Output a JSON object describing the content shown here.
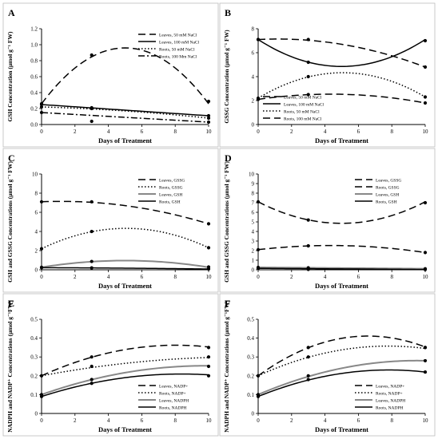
{
  "chart_data": [
    {
      "panel": "A",
      "type": "line",
      "ylabel": "GSH Concentration (µmol g⁻¹ FW)",
      "xlabel": "Days of Treatment",
      "xlim": [
        0,
        10
      ],
      "ylim": [
        0,
        1.2
      ],
      "xticks": [
        0,
        2,
        4,
        6,
        8,
        10
      ],
      "yticks": [
        "0.0",
        "0.2",
        "0.4",
        "0.6",
        "0.8",
        "1.0",
        "1.2"
      ],
      "legend_position": "top-right",
      "series": [
        {
          "name": "Leaves, 50 mM NaCl",
          "style": "longdash",
          "color": "#000000",
          "x": [
            0,
            3,
            10
          ],
          "y": [
            0.26,
            0.87,
            0.29
          ],
          "fit": [
            0.26,
            0.28,
            -0.028
          ]
        },
        {
          "name": "Leaves, 100 mM NaCl",
          "style": "solid",
          "color": "#000000",
          "x": [
            0,
            3,
            10
          ],
          "y": [
            0.25,
            0.21,
            0.11
          ],
          "fit": [
            0.25,
            -0.014,
            0
          ]
        },
        {
          "name": "Roots, 50 mM NaCl",
          "style": "dotted",
          "color": "#000000",
          "x": [
            0,
            3,
            10
          ],
          "y": [
            0.22,
            0.2,
            0.08
          ],
          "fit": [
            0.22,
            -0.006,
            -0.0008
          ]
        },
        {
          "name": "Roots, 100 Mm NaCl",
          "style": "dashdot",
          "color": "#000000",
          "x": [
            0,
            3,
            10
          ],
          "y": [
            0.15,
            0.04,
            0.03
          ],
          "fit": [
            0.15,
            -0.012,
            0
          ]
        }
      ]
    },
    {
      "panel": "B",
      "type": "line",
      "ylabel": "GSSG Concentration (µmol g⁻¹ FW)",
      "xlabel": "Days of Treatment",
      "xlim": [
        0,
        10
      ],
      "ylim": [
        0,
        8
      ],
      "xticks": [
        0,
        2,
        4,
        6,
        8,
        10
      ],
      "yticks": [
        "0",
        "2",
        "4",
        "6",
        "8"
      ],
      "legend_position": "bottom-left",
      "series": [
        {
          "name": "Leaves, 50 mM NaCl",
          "style": "longdash",
          "color": "#000000",
          "x": [
            0,
            3,
            10
          ],
          "y": [
            7.1,
            7.1,
            4.8
          ],
          "fit": [
            7.1,
            0.07,
            -0.03
          ]
        },
        {
          "name": "Leaves, 100 mM NaCl",
          "style": "solid",
          "color": "#000000",
          "x": [
            0,
            3,
            10
          ],
          "y": [
            7.1,
            5.2,
            7.0
          ],
          "fit": [
            7.1,
            -0.9,
            0.09
          ]
        },
        {
          "name": "Roots, 50 mM NaCl",
          "style": "dotted",
          "color": "#000000",
          "x": [
            0,
            3,
            10
          ],
          "y": [
            2.2,
            4.0,
            2.3
          ],
          "fit": [
            2.2,
            0.84,
            -0.083
          ]
        },
        {
          "name": "Roots, 100 mM NaCl",
          "style": "longdash",
          "color": "#000000",
          "x": [
            0,
            3,
            10
          ],
          "y": [
            2.1,
            2.5,
            1.8
          ],
          "fit": [
            2.1,
            0.2,
            -0.023
          ]
        }
      ]
    },
    {
      "panel": "C",
      "type": "line",
      "ylabel": "GSH and GSSG Concentrations (µmol g⁻¹ FW)",
      "xlabel": "Days of Treatment",
      "xlim": [
        0,
        10
      ],
      "ylim": [
        0,
        10
      ],
      "xticks": [
        0,
        2,
        4,
        6,
        8,
        10
      ],
      "yticks": [
        "0",
        "2",
        "4",
        "6",
        "8",
        "10"
      ],
      "legend_position": "top-right",
      "series": [
        {
          "name": "Leaves, GSSG",
          "style": "longdash",
          "color": "#000000",
          "x": [
            0,
            3,
            10
          ],
          "y": [
            7.1,
            7.1,
            4.8
          ],
          "fit": [
            7.1,
            0.07,
            -0.03
          ]
        },
        {
          "name": "Roots, GSSG",
          "style": "dotted",
          "color": "#000000",
          "x": [
            0,
            3,
            10
          ],
          "y": [
            2.2,
            4.0,
            2.3
          ],
          "fit": [
            2.2,
            0.84,
            -0.083
          ]
        },
        {
          "name": "Leaves, GSH",
          "style": "solid",
          "color": "#888888",
          "x": [
            0,
            3,
            10
          ],
          "y": [
            0.26,
            0.87,
            0.29
          ],
          "fit": [
            0.26,
            0.28,
            -0.028
          ]
        },
        {
          "name": "Roots, GSH",
          "style": "solid",
          "color": "#000000",
          "x": [
            0,
            3,
            10
          ],
          "y": [
            0.22,
            0.2,
            0.08
          ],
          "fit": [
            0.22,
            -0.006,
            -0.0008
          ]
        }
      ]
    },
    {
      "panel": "D",
      "type": "line",
      "ylabel": "GSH and GSSG Concentrations (µmol g⁻¹ FW)",
      "xlabel": "Days of Treatment",
      "xlim": [
        0,
        10
      ],
      "ylim": [
        0,
        10
      ],
      "xticks": [
        0,
        2,
        4,
        6,
        8,
        10
      ],
      "yticks": [
        "0",
        "1",
        "2",
        "3",
        "4",
        "5",
        "6",
        "7",
        "8",
        "9",
        "10"
      ],
      "legend_position": "top-right",
      "series": [
        {
          "name": "Leaves, GSSG",
          "style": "longdash",
          "color": "#000000",
          "x": [
            0,
            3,
            10
          ],
          "y": [
            7.1,
            5.2,
            7.0
          ],
          "fit": [
            7.1,
            -0.9,
            0.09
          ]
        },
        {
          "name": "Roots, GSSG",
          "style": "longdash",
          "color": "#000000",
          "x": [
            0,
            3,
            10
          ],
          "y": [
            2.1,
            2.5,
            1.8
          ],
          "fit": [
            2.1,
            0.2,
            -0.023
          ]
        },
        {
          "name": "Leaves, GSH",
          "style": "solid",
          "color": "#888888",
          "x": [
            0,
            3,
            10
          ],
          "y": [
            0.25,
            0.21,
            0.11
          ],
          "fit": [
            0.25,
            -0.014,
            0
          ]
        },
        {
          "name": "Roots, GSH",
          "style": "solid",
          "color": "#000000",
          "x": [
            0,
            3,
            10
          ],
          "y": [
            0.15,
            0.04,
            0.03
          ],
          "fit": [
            0.15,
            -0.012,
            0
          ]
        }
      ]
    },
    {
      "panel": "E",
      "type": "line",
      "ylabel": "NADPH and NADP⁺ Concentrations (µmol g⁻¹FW)",
      "xlabel": "Days of Treatment",
      "xlim": [
        0,
        10
      ],
      "ylim": [
        0,
        0.5
      ],
      "xticks": [
        0,
        2,
        4,
        6,
        8,
        10
      ],
      "yticks": [
        "0",
        "0.1",
        "0.2",
        "0.3",
        "0.4",
        "0.5"
      ],
      "legend_position": "bottom-right",
      "series": [
        {
          "name": "Leaves, NADP+",
          "style": "longdash",
          "color": "#000000",
          "x": [
            0,
            3,
            10
          ],
          "y": [
            0.2,
            0.3,
            0.35
          ],
          "fit": [
            0.2,
            0.0403,
            -0.0025
          ]
        },
        {
          "name": "Roots, NADP+",
          "style": "dotted",
          "color": "#000000",
          "x": [
            0,
            3,
            10
          ],
          "y": [
            0.2,
            0.25,
            0.3
          ],
          "fit": [
            0.2,
            0.0167,
            -0.0007
          ]
        },
        {
          "name": "Leaves, NADPH",
          "style": "solid",
          "color": "#888888",
          "x": [
            0,
            3,
            10
          ],
          "y": [
            0.1,
            0.18,
            0.25
          ],
          "fit": [
            0.1,
            0.0313,
            -0.0016
          ]
        },
        {
          "name": "Roots, NADPH",
          "style": "solid",
          "color": "#000000",
          "x": [
            0,
            3,
            10
          ],
          "y": [
            0.09,
            0.16,
            0.2
          ],
          "fit": [
            0.09,
            0.0285,
            -0.0017
          ]
        }
      ]
    },
    {
      "panel": "F",
      "type": "line",
      "ylabel": "NADPH and NADP⁺ Concentrations (µmol g⁻¹FW)",
      "xlabel": "Days of Treatment",
      "xlim": [
        0,
        10
      ],
      "ylim": [
        0,
        0.5
      ],
      "xticks": [
        0,
        2,
        4,
        6,
        8,
        10
      ],
      "yticks": [
        "0",
        "0.1",
        "0.2",
        "0.3",
        "0.4",
        "0.5"
      ],
      "legend_position": "bottom-right",
      "series": [
        {
          "name": "Leaves, NADP+",
          "style": "longdash",
          "color": "#000000",
          "x": [
            0,
            3,
            10
          ],
          "y": [
            0.2,
            0.35,
            0.35
          ],
          "fit": [
            0.2,
            0.0643,
            -0.0049
          ]
        },
        {
          "name": "Roots, NADP+",
          "style": "dotted",
          "color": "#000000",
          "x": [
            0,
            3,
            10
          ],
          "y": [
            0.2,
            0.3,
            0.35
          ],
          "fit": [
            0.2,
            0.0405,
            -0.0026
          ]
        },
        {
          "name": "Leaves, NADPH",
          "style": "solid",
          "color": "#888888",
          "x": [
            0,
            3,
            10
          ],
          "y": [
            0.1,
            0.2,
            0.28
          ],
          "fit": [
            0.1,
            0.038,
            -0.002
          ]
        },
        {
          "name": "Roots, NADPH",
          "style": "solid",
          "color": "#000000",
          "x": [
            0,
            3,
            10
          ],
          "y": [
            0.09,
            0.18,
            0.22
          ],
          "fit": [
            0.09,
            0.036,
            -0.0023
          ]
        }
      ]
    }
  ]
}
